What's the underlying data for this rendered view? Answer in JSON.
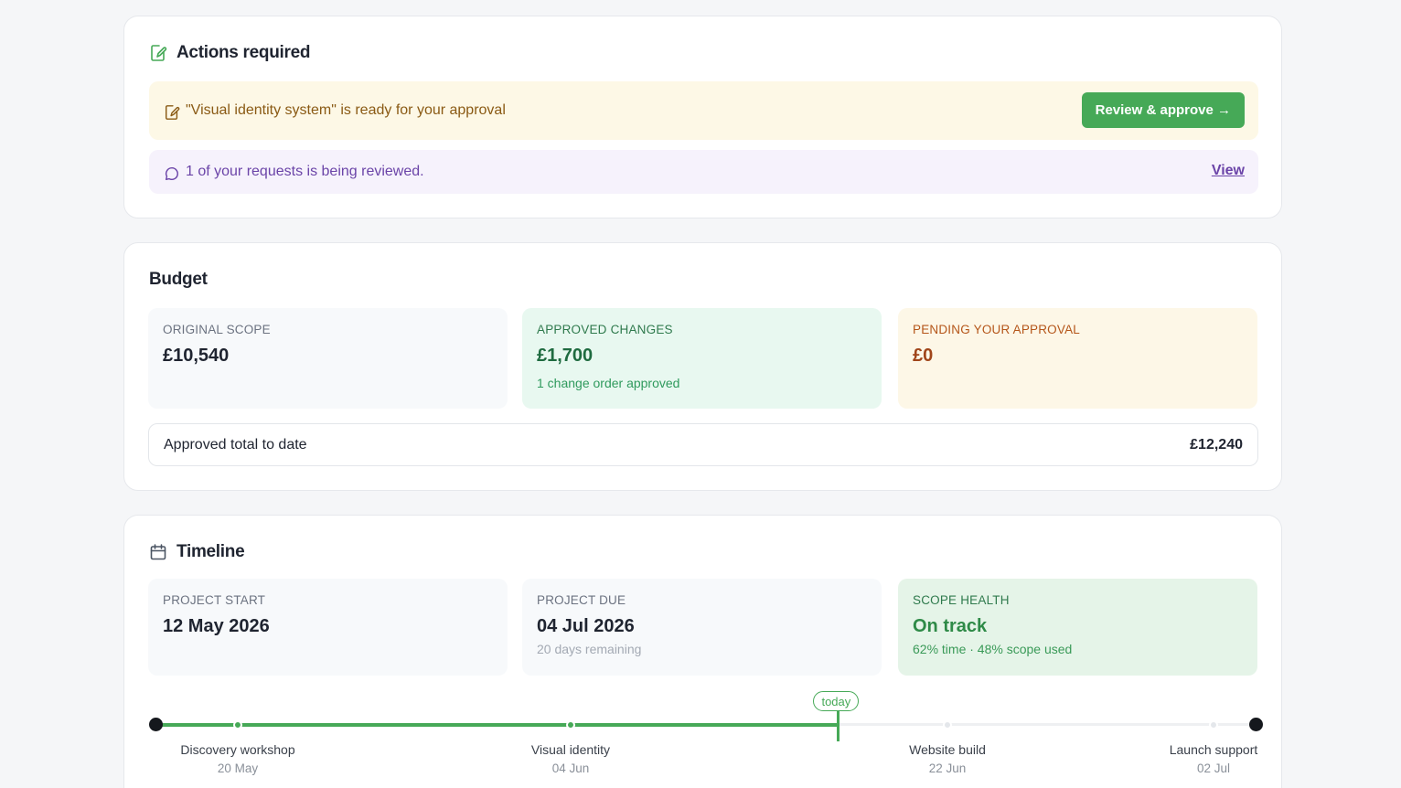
{
  "actions": {
    "title": "Actions required",
    "approval_text": "\"Visual identity system\" is ready for your approval",
    "approve_button": "Review & approve →",
    "review_text": "1 of your requests is being reviewed.",
    "view_link": "View"
  },
  "budget": {
    "title": "Budget",
    "original": {
      "label": "ORIGINAL SCOPE",
      "value": "£10,540"
    },
    "approved": {
      "label": "APPROVED CHANGES",
      "value": "£1,700",
      "sub": "1 change order approved"
    },
    "pending": {
      "label": "PENDING YOUR APPROVAL",
      "value": "£0"
    },
    "total": {
      "label": "Approved total to date",
      "value": "£12,240"
    }
  },
  "timeline": {
    "title": "Timeline",
    "start": {
      "label": "PROJECT START",
      "value": "12 May 2026"
    },
    "due": {
      "label": "PROJECT DUE",
      "value": "04 Jul 2026",
      "sub": "20 days remaining"
    },
    "health": {
      "label": "SCOPE HEALTH",
      "value": "On track",
      "sub": "62% time · 48% scope used"
    },
    "today_label": "today",
    "progress_fraction": 0.62,
    "milestones": [
      {
        "name": "Discovery workshop",
        "date": "20 May",
        "done": true
      },
      {
        "name": "Visual identity",
        "date": "04 Jun",
        "done": true
      },
      {
        "name": "Website build",
        "date": "22 Jun",
        "done": false
      },
      {
        "name": "Launch support",
        "date": "02 Jul",
        "done": false
      }
    ]
  },
  "colors": {
    "accent_green": "#46a957",
    "approval_bg": "#fdf8e6",
    "review_bg": "#f6f2fc"
  }
}
